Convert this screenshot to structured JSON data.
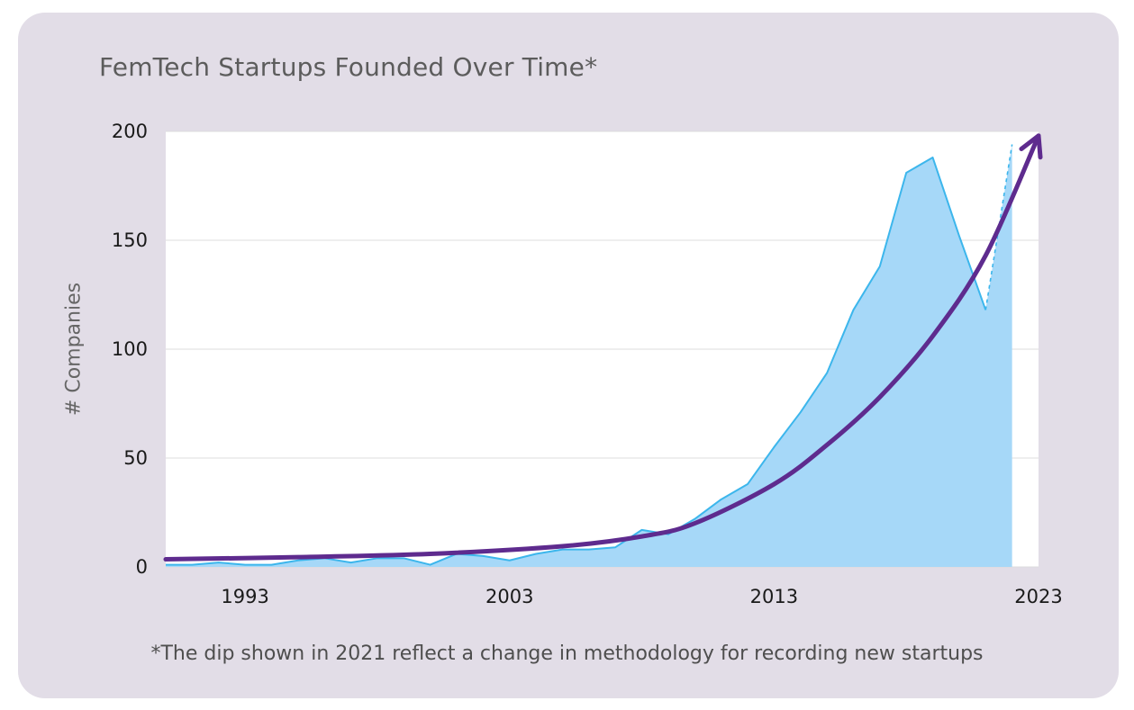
{
  "chart_data": {
    "type": "area",
    "title": "FemTech Startups Founded Over Time*",
    "xlabel": "",
    "ylabel": "# Companies",
    "footnote": "*The dip shown in 2021 reflect a change in methodology for recording new startups",
    "xlim": [
      1990,
      2023
    ],
    "ylim": [
      0,
      200
    ],
    "x_ticks": [
      1993,
      2003,
      2013,
      2023
    ],
    "y_ticks": [
      0,
      50,
      100,
      150,
      200
    ],
    "grid": true,
    "series": [
      {
        "color": "#3cb6ec",
        "fill_color": "#a6d8f8",
        "x": [
          1990,
          1991,
          1992,
          1993,
          1994,
          1995,
          1996,
          1997,
          1998,
          1999,
          2000,
          2001,
          2002,
          2003,
          2004,
          2005,
          2006,
          2007,
          2008,
          2009,
          2010,
          2011,
          2012,
          2013,
          2014,
          2015,
          2016,
          2017,
          2018,
          2019,
          2020,
          2021,
          2022
        ],
        "values": [
          1,
          1,
          2,
          1,
          1,
          3,
          4,
          2,
          4,
          4,
          1,
          6,
          5,
          3,
          6,
          8,
          8,
          9,
          17,
          15,
          22,
          31,
          38,
          55,
          71,
          89,
          118,
          138,
          181,
          188,
          152,
          118,
          194
        ],
        "dashed_last_segment": true
      }
    ],
    "trend": {
      "color": "#5e2b8e",
      "arrow": true,
      "x": [
        1990,
        1995,
        2000,
        2005,
        2008,
        2010,
        2013,
        2015,
        2017,
        2019,
        2021,
        2023
      ],
      "values": [
        3.5,
        4.5,
        6,
        9.5,
        14,
        20,
        38,
        56,
        78,
        106,
        143,
        198
      ]
    }
  }
}
